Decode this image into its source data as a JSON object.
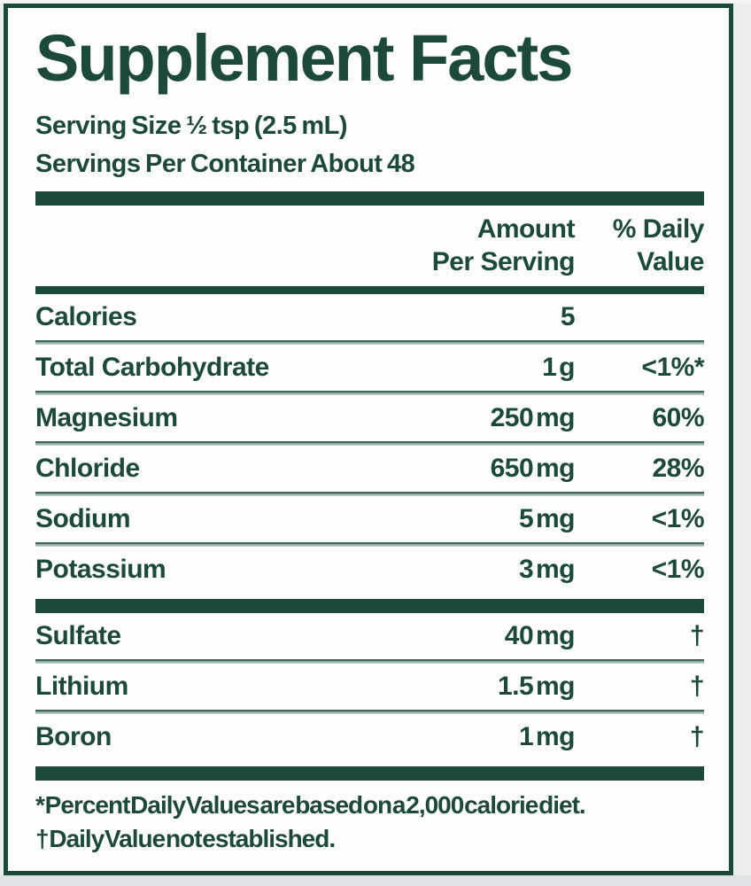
{
  "panel": {
    "title": "Supplement Facts",
    "serving_size": "Serving Size ½ tsp (2.5 mL)",
    "servings_per_container": "Servings Per Container About 48",
    "header": {
      "amount_line1": "Amount",
      "amount_line2": "Per Serving",
      "dv_line1": "% Daily",
      "dv_line2": "Value"
    },
    "rows": [
      {
        "name": "Calories",
        "amount": "5",
        "dv": ""
      },
      {
        "name": "Total Carbohydrate",
        "amount": "1 g",
        "dv": "<1%*"
      },
      {
        "name": "Magnesium",
        "amount": "250 mg",
        "dv": "60%"
      },
      {
        "name": "Chloride",
        "amount": "650 mg",
        "dv": "28%"
      },
      {
        "name": "Sodium",
        "amount": "5 mg",
        "dv": "<1%"
      },
      {
        "name": "Potassium",
        "amount": "3 mg",
        "dv": "<1%"
      },
      {
        "name": "Sulfate",
        "amount": "40 mg",
        "dv": "†"
      },
      {
        "name": "Lithium",
        "amount": "1.5 mg",
        "dv": "†"
      },
      {
        "name": "Boron",
        "amount": "1 mg",
        "dv": "†"
      }
    ],
    "footnotes": {
      "percent_dv": "* Percent Daily Values are based on a 2,000 calorie diet.",
      "dagger": "† Daily Value not established."
    },
    "colors": {
      "green": "#1d4a38",
      "separator_light": "#bccdc3",
      "panel_bg": "#fdfdfd",
      "page_bg": "#eceeee"
    }
  }
}
